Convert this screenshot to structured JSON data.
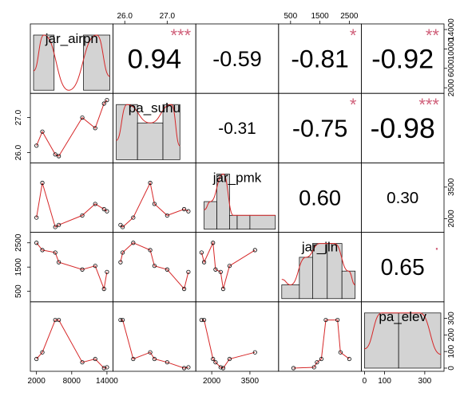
{
  "chart_data": {
    "type": "scatter",
    "subtype": "correlation-matrix",
    "variables": [
      "jar_airpn",
      "pa_suhu",
      "jar_pmk",
      "jar_jln",
      "pa_elev"
    ],
    "ranges": [
      [
        1500,
        14500
      ],
      [
        25.8,
        27.6
      ],
      [
        1500,
        4500
      ],
      [
        200,
        2800
      ],
      [
        0,
        380
      ]
    ],
    "ticks": [
      {
        "values": [
          2000,
          8000,
          14000
        ],
        "labels": [
          "2000",
          "8000",
          "14000"
        ]
      },
      {
        "values": [
          26.0,
          27.0
        ],
        "labels": [
          "26.0",
          "27.0"
        ]
      },
      {
        "values": [
          2000,
          3500
        ],
        "labels": [
          "2000",
          "3500"
        ]
      },
      {
        "values": [
          500,
          1500,
          2500
        ],
        "labels": [
          "500",
          "1500",
          "2500"
        ]
      },
      {
        "values": [
          0,
          100,
          300
        ],
        "labels": [
          "0",
          "100",
          "300"
        ]
      }
    ],
    "right_axis_labels": [
      [
        "2000",
        "6000",
        "10000",
        "14000"
      ],
      [
        "26.0",
        "27.0"
      ],
      [
        "2000",
        "3500"
      ],
      [
        "500",
        "1500",
        "2500"
      ],
      [
        "0",
        "100",
        "200",
        "300"
      ]
    ],
    "observations": [
      [
        3000,
        26.6,
        3700,
        2200,
        95
      ],
      [
        2000,
        26.2,
        2050,
        2500,
        55
      ],
      [
        5800,
        25.9,
        1700,
        1700,
        290
      ],
      [
        5200,
        25.95,
        1600,
        2100,
        290
      ],
      [
        12000,
        26.7,
        2700,
        1550,
        55
      ],
      [
        13500,
        27.4,
        2450,
        600,
        0
      ],
      [
        9800,
        27.0,
        2150,
        1400,
        35
      ],
      [
        14000,
        27.5,
        2350,
        1300,
        5
      ]
    ],
    "histograms": [
      {
        "bins": [
          [
            1500,
            5000,
            2
          ],
          [
            5000,
            10000,
            0
          ],
          [
            10000,
            14500,
            2
          ]
        ]
      },
      {
        "bins": [
          [
            25.8,
            26.3,
            3
          ],
          [
            26.3,
            26.9,
            2
          ],
          [
            26.9,
            27.3,
            3
          ]
        ]
      },
      {
        "bins": [
          [
            1700,
            2200,
            2
          ],
          [
            2200,
            2700,
            4
          ],
          [
            2700,
            3000,
            1
          ],
          [
            3000,
            3500,
            1
          ],
          [
            3500,
            4500,
            1
          ]
        ]
      },
      {
        "bins": [
          [
            200,
            800,
            1
          ],
          [
            800,
            1250,
            3
          ],
          [
            1250,
            1750,
            4
          ],
          [
            1750,
            2250,
            4
          ],
          [
            2250,
            2700,
            2
          ]
        ]
      },
      {
        "bins": [
          [
            0,
            170,
            4
          ],
          [
            170,
            380,
            4
          ]
        ]
      }
    ],
    "correlations": [
      {
        "row": 0,
        "col": 1,
        "value": "0.94",
        "stars": "***"
      },
      {
        "row": 0,
        "col": 2,
        "value": "-0.59",
        "stars": ""
      },
      {
        "row": 0,
        "col": 3,
        "value": "-0.81",
        "stars": "*"
      },
      {
        "row": 0,
        "col": 4,
        "value": "-0.92",
        "stars": "**"
      },
      {
        "row": 1,
        "col": 2,
        "value": "-0.31",
        "stars": ""
      },
      {
        "row": 1,
        "col": 3,
        "value": "-0.75",
        "stars": "*"
      },
      {
        "row": 1,
        "col": 4,
        "value": "-0.98",
        "stars": "***"
      },
      {
        "row": 2,
        "col": 3,
        "value": "0.60",
        "stars": ""
      },
      {
        "row": 2,
        "col": 4,
        "value": "0.30",
        "stars": ""
      },
      {
        "row": 3,
        "col": 4,
        "value": "0.65",
        "stars": "."
      }
    ],
    "colors": {
      "smooth_line": "#d62728",
      "density_line": "#d62728",
      "stars": "#d0607a",
      "hist_fill": "#d3d3d3",
      "frame": "#000000"
    }
  }
}
